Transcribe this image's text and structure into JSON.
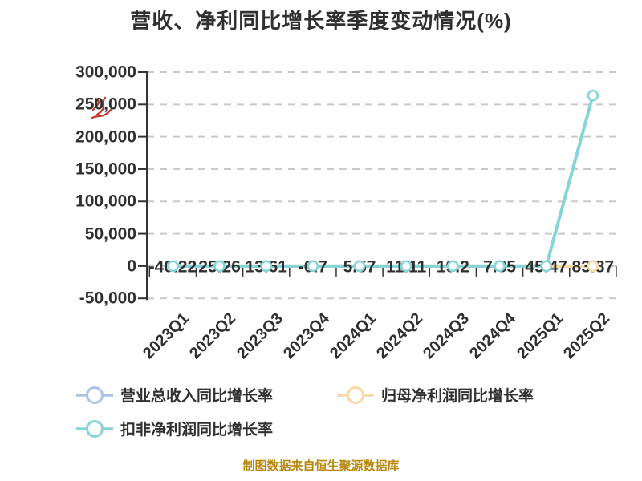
{
  "colors": {
    "text": "#303030",
    "grid": "#c9c9c9",
    "axis": "#333333",
    "footer_text": "#b8860b",
    "background": "#ffffff",
    "watermark_red": "#c0392b",
    "marker_fill": "#ffffff"
  },
  "footer": {
    "text": "制图数据来自恒生聚源数据库"
  },
  "watermark": {
    "description": "small red handwritten scribble over the 250,000 axis label",
    "color": "#c0392b"
  },
  "chart_data": {
    "type": "line",
    "title": "营收、净利同比增长率季度变动情况(%)",
    "xlabel": "",
    "ylabel": "",
    "categories": [
      "2023Q1",
      "2023Q2",
      "2023Q3",
      "2023Q4",
      "2024Q1",
      "2024Q2",
      "2024Q3",
      "2024Q4",
      "2025Q1",
      "2025Q2"
    ],
    "ylim": [
      -50000,
      300000
    ],
    "ytick_step": 50000,
    "yticks": [
      300000,
      250000,
      200000,
      150000,
      100000,
      50000,
      0,
      -50000
    ],
    "grid": "horizontal dashed gridlines",
    "legend_position": "bottom-left, two rows",
    "point_labels": [
      "-40.22",
      "25.26",
      "13.61",
      "-0.7",
      "5.57",
      "11.11",
      "19.2",
      "7.35",
      "45.47",
      "83.87"
    ],
    "point_labels_note": "printed along the zero line, one per quarter; series labels overlap at this axis scale",
    "series": [
      {
        "name": "营业总收入同比增长率",
        "color": "#a9c3e8",
        "values": [
          -40.22,
          25.26,
          13.61,
          -0.7,
          5.57,
          11.11,
          19.2,
          7.35,
          45.47,
          83.87
        ],
        "note": "values from the visible data labels; line hidden behind the other series at this axis scale"
      },
      {
        "name": "归母净利润同比增长率",
        "color": "#f8d9a4",
        "values": [
          0,
          0,
          0,
          0,
          0,
          0,
          0,
          0,
          0,
          0
        ],
        "note": "≈0 at axis scale; orange segment visible from 2024Q4 to 2025Q2"
      },
      {
        "name": "扣非净利润同比增长率",
        "color": "#85d5d8",
        "values": [
          0,
          0,
          0,
          0,
          0,
          0,
          0,
          0,
          0,
          264000
        ],
        "note": "≈0 at axis scale until 2025Q1, spikes to ≈264,000 at 2025Q2 (estimated from gridlines)"
      }
    ]
  }
}
